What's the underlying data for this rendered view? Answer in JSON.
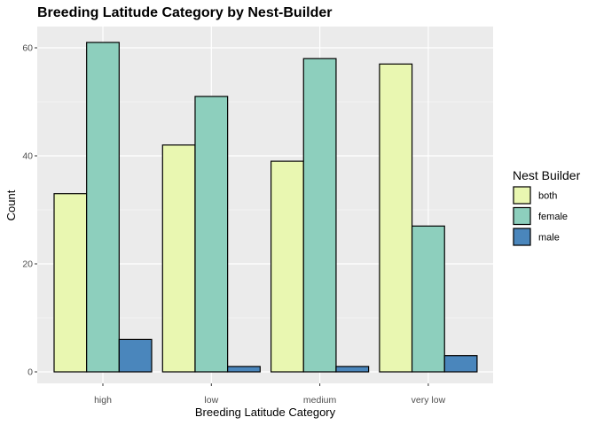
{
  "chart_data": {
    "type": "bar",
    "title": "Breeding Latitude Category by Nest-Builder",
    "xlabel": "Breeding Latitude Category",
    "ylabel": "Count",
    "categories": [
      "high",
      "low",
      "medium",
      "very low"
    ],
    "series": [
      {
        "name": "both",
        "color": "#e9f7b1",
        "values": [
          33,
          42,
          39,
          57
        ]
      },
      {
        "name": "female",
        "color": "#8dcfbd",
        "values": [
          61,
          51,
          58,
          27
        ]
      },
      {
        "name": "male",
        "color": "#4a86bc",
        "values": [
          6,
          1,
          1,
          3
        ]
      }
    ],
    "ylim": [
      0,
      63
    ],
    "yticks": [
      0,
      20,
      40,
      60
    ],
    "grid": true,
    "legend": {
      "title": "Nest Builder",
      "position": "right"
    },
    "colors": {
      "panel_background": "#ebebeb",
      "grid_major": "#ffffff",
      "bar_outline": "#000000"
    }
  }
}
